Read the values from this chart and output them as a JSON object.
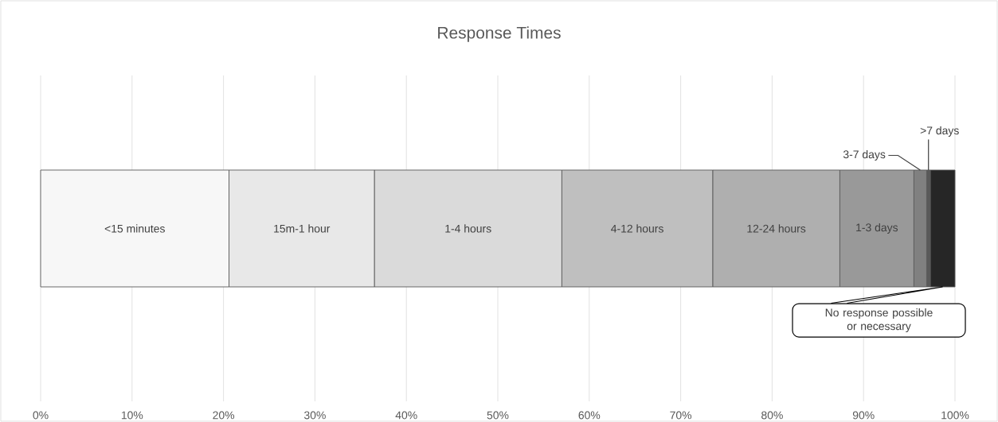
{
  "chart_data": {
    "type": "bar",
    "title": "Response Times",
    "orientation": "horizontal",
    "stacked": true,
    "categories": [
      null
    ],
    "series": [
      {
        "name": "<15 minutes",
        "color": "#f7f7f7",
        "values": [
          20.6
        ]
      },
      {
        "name": "15m-1 hour",
        "color": "#e8e8e8",
        "values": [
          15.9
        ]
      },
      {
        "name": "1-4 hours",
        "color": "#dadada",
        "values": [
          20.5
        ]
      },
      {
        "name": "4-12 hours",
        "color": "#bfbfbf",
        "values": [
          16.5
        ]
      },
      {
        "name": "12-24 hours",
        "color": "#afafaf",
        "values": [
          13.9
        ]
      },
      {
        "name": "1-3 days",
        "color": "#999999",
        "values": [
          8.1
        ]
      },
      {
        "name": "3-7 days",
        "color": "#808080",
        "values": [
          1.4
        ]
      },
      {
        "name": ">7 days",
        "color": "#595959",
        "values": [
          0.4
        ]
      },
      {
        "name": "No response possible or necessary",
        "color": "#262626",
        "values": [
          2.7
        ]
      }
    ],
    "xlim": [
      0,
      100
    ],
    "xticks": [
      {
        "value": 0,
        "label": "0%"
      },
      {
        "value": 10,
        "label": "10%"
      },
      {
        "value": 20,
        "label": "20%"
      },
      {
        "value": 30,
        "label": "30%"
      },
      {
        "value": 40,
        "label": "40%"
      },
      {
        "value": 50,
        "label": "50%"
      },
      {
        "value": 60,
        "label": "60%"
      },
      {
        "value": 70,
        "label": "70%"
      },
      {
        "value": 80,
        "label": "80%"
      },
      {
        "value": 90,
        "label": "90%"
      },
      {
        "value": 100,
        "label": "100%"
      }
    ],
    "grid": "x"
  }
}
